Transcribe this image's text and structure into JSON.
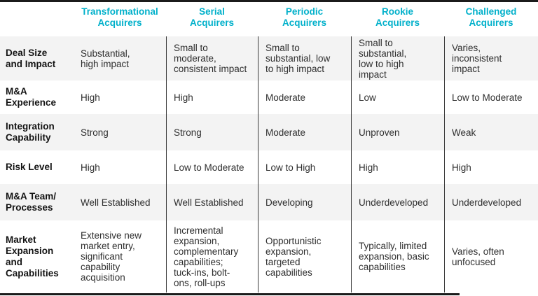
{
  "colors": {
    "accent_header_cyan": "#00b0ca",
    "row_band_gray": "#f3f3f3",
    "border_bar_black": "#1b1b1b",
    "divider_line": "#3a3a3a"
  },
  "table": {
    "column_headers": [
      "Transformational\nAcquirers",
      "Serial\nAcquirers",
      "Periodic\nAcquirers",
      "Rookie\nAcquirers",
      "Challenged\nAcquirers"
    ],
    "rows": [
      {
        "label": "Deal Size\nand Impact",
        "cells": [
          "Substantial,\nhigh impact",
          "Small to\nmoderate,\nconsistent impact",
          "Small to\nsubstantial, low\nto high impact",
          "Small to\nsubstantial,\nlow to high\nimpact",
          "Varies,\ninconsistent\nimpact"
        ]
      },
      {
        "label": "M&A\nExperience",
        "cells": [
          "High",
          "High",
          "Moderate",
          "Low",
          "Low to Moderate"
        ]
      },
      {
        "label": "Integration\nCapability",
        "cells": [
          "Strong",
          "Strong",
          "Moderate",
          "Unproven",
          "Weak"
        ]
      },
      {
        "label": "Risk Level",
        "cells": [
          "High",
          "Low to Moderate",
          "Low to High",
          "High",
          "High"
        ]
      },
      {
        "label": "M&A Team/\nProcesses",
        "cells": [
          "Well Established",
          "Well Established",
          "Developing",
          "Underdeveloped",
          "Underdeveloped"
        ]
      },
      {
        "label": "Market\nExpansion\nand\nCapabilities",
        "cells": [
          "Extensive new\nmarket entry,\nsignificant\ncapability\nacquisition",
          "Incremental\nexpansion,\ncomplementary\ncapabilities;\ntuck-ins, bolt-\nons, roll-ups",
          "Opportunistic\nexpansion,\ntargeted\ncapabilities",
          "Typically, limited\nexpansion, basic\ncapabilities",
          "Varies, often\nunfocused"
        ]
      }
    ]
  }
}
